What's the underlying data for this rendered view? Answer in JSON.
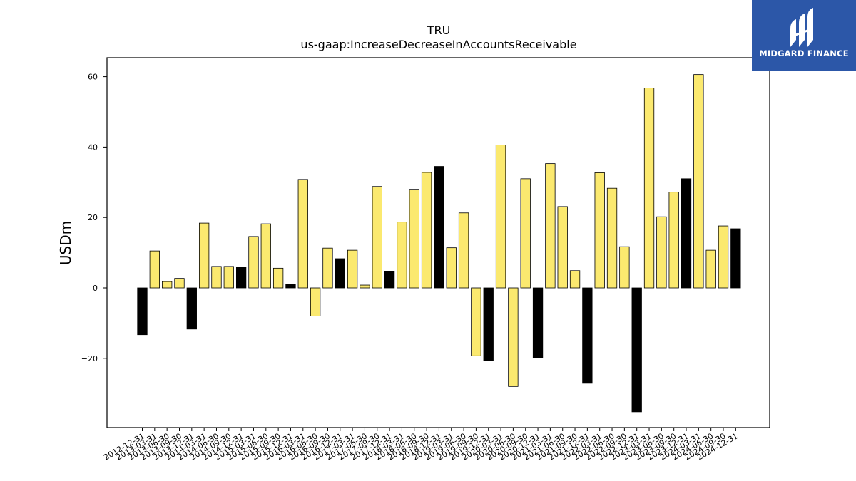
{
  "logo": {
    "text": "MIDGARD FINANCE",
    "bg_color": "#2c57a8",
    "icon": "midgard-logo-icon"
  },
  "chart_data": {
    "type": "bar",
    "title": "TRU",
    "subtitle": "us-gaap:IncreaseDecreaseInAccountsReceivable",
    "xlabel": "",
    "ylabel": "USDm",
    "ylim": [
      -40,
      65
    ],
    "yticks": [
      -20,
      0,
      20,
      40,
      60
    ],
    "grid": false,
    "legend": "none",
    "colors": {
      "quarter": "#fbe96f",
      "year_end": "#000000",
      "edge": "#000000"
    },
    "categories": [
      "2012-12-31",
      "2013-03-31",
      "2013-06-30",
      "2013-09-30",
      "2013-12-31",
      "2014-03-31",
      "2014-06-30",
      "2014-09-30",
      "2014-12-31",
      "2015-03-31",
      "2015-06-30",
      "2015-09-30",
      "2015-12-31",
      "2016-03-31",
      "2016-06-30",
      "2016-09-30",
      "2016-12-31",
      "2017-03-31",
      "2017-06-30",
      "2017-09-30",
      "2017-12-31",
      "2018-03-31",
      "2018-06-30",
      "2018-09-30",
      "2018-12-31",
      "2019-03-31",
      "2019-06-30",
      "2019-09-30",
      "2019-12-31",
      "2020-03-31",
      "2020-06-30",
      "2020-09-30",
      "2020-12-31",
      "2021-03-31",
      "2021-06-30",
      "2021-09-30",
      "2021-12-31",
      "2022-03-31",
      "2022-06-30",
      "2022-09-30",
      "2022-12-31",
      "2023-03-31",
      "2023-06-30",
      "2023-09-30",
      "2023-12-31",
      "2024-03-31",
      "2024-06-30",
      "2024-09-30",
      "2024-12-31"
    ],
    "values": [
      -13.3,
      10.5,
      1.8,
      2.7,
      -11.7,
      18.4,
      6.1,
      6.1,
      5.8,
      14.6,
      18.2,
      5.6,
      1.0,
      30.8,
      -8.0,
      11.3,
      8.3,
      10.7,
      0.8,
      28.8,
      4.7,
      18.7,
      28.0,
      32.8,
      34.5,
      11.4,
      21.3,
      -19.3,
      -20.6,
      40.6,
      -28.0,
      31.0,
      -19.8,
      35.3,
      23.1,
      4.9,
      -27.1,
      32.7,
      28.3,
      11.7,
      -35.2,
      56.8,
      20.2,
      27.2,
      31.0,
      60.6,
      10.7,
      17.6,
      16.8
    ],
    "year_end": [
      true,
      false,
      false,
      false,
      true,
      false,
      false,
      false,
      true,
      false,
      false,
      false,
      true,
      false,
      false,
      false,
      true,
      false,
      false,
      false,
      true,
      false,
      false,
      false,
      true,
      false,
      false,
      false,
      true,
      false,
      false,
      false,
      true,
      false,
      false,
      false,
      true,
      false,
      false,
      false,
      true,
      false,
      false,
      false,
      true,
      false,
      false,
      false,
      true
    ]
  }
}
